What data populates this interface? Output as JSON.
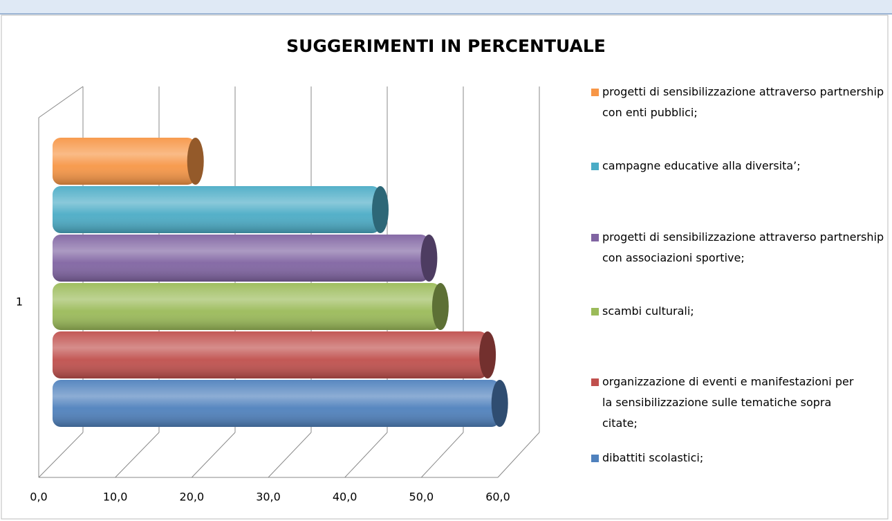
{
  "chart_data": {
    "type": "bar3d",
    "title": "SUGGERIMENTI IN PERCENTUALE",
    "categories": [
      "1"
    ],
    "series": [
      {
        "name": "progetti di sensibilizzazione attraverso partnership con enti pubblici;",
        "color": "#f79646",
        "values": [
          17.7
        ]
      },
      {
        "name": "campagne educative alla diversita’;",
        "color": "#4bacc6",
        "values": [
          42.0
        ]
      },
      {
        "name": "progetti di sensibilizzazione attraverso partnership con associazioni sportive;",
        "color": "#8064a2",
        "values": [
          48.4
        ]
      },
      {
        "name": "scambi culturali;",
        "color": "#9bbb59",
        "values": [
          49.9
        ]
      },
      {
        "name": "organizzazione di eventi e manifestazioni per la sensibilizzazione sulle tematiche sopra citate;",
        "color": "#c0504d",
        "values": [
          56.1
        ]
      },
      {
        "name": "dibattiti scolastici;",
        "color": "#4f81bd",
        "values": [
          57.7
        ]
      }
    ],
    "xlim": [
      0,
      60
    ],
    "xticks": [
      {
        "value": 0,
        "label": "0,0"
      },
      {
        "value": 10,
        "label": "10,0"
      },
      {
        "value": 20,
        "label": "20,0"
      },
      {
        "value": 30,
        "label": "30,0"
      },
      {
        "value": 40,
        "label": "40,0"
      },
      {
        "value": 50,
        "label": "50,0"
      },
      {
        "value": 60,
        "label": "60,0"
      }
    ],
    "grid": true,
    "legend": "right"
  }
}
